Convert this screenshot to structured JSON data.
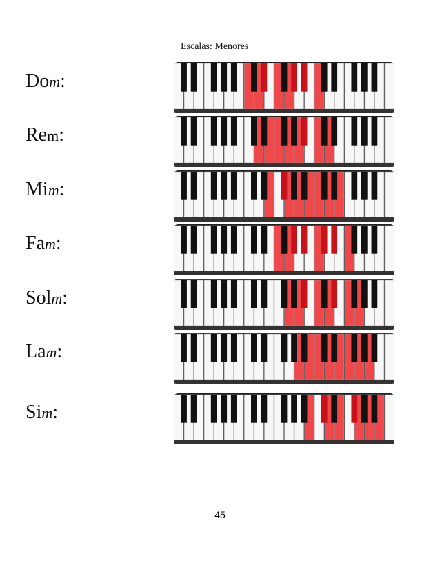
{
  "header": {
    "title": "Escalas: Menores"
  },
  "rows": [
    {
      "root": "Do",
      "mode": "m",
      "sep": ":"
    },
    {
      "root": "Re",
      "mode": "m",
      "sep": ":"
    },
    {
      "root": "Mi",
      "mode": "m",
      "sep": ":"
    },
    {
      "root": "Fa",
      "mode": "m",
      "sep": ":"
    },
    {
      "root": "Sol",
      "mode": "m",
      "sep": ":"
    },
    {
      "root": "La",
      "mode": "m",
      "sep": ":"
    },
    {
      "root": "Si",
      "mode": "m",
      "sep": ":"
    }
  ],
  "footer": {
    "page_number": "45"
  }
}
